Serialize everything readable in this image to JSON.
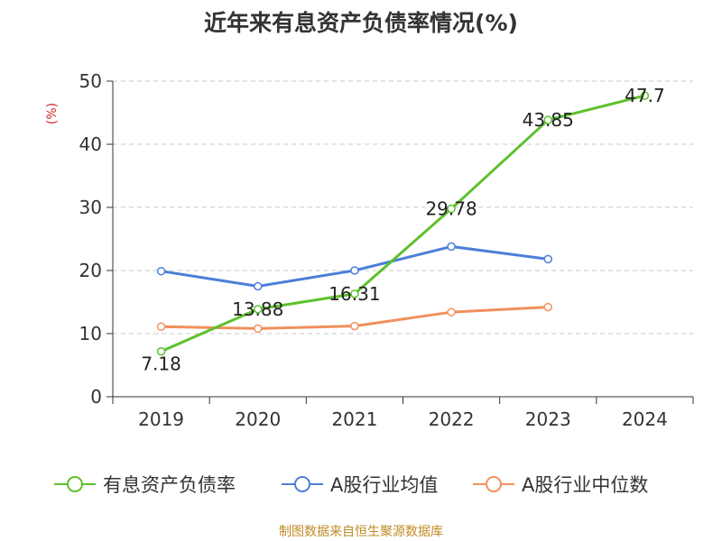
{
  "chart_data": {
    "type": "line",
    "title": "近年来有息资产负债率情况(%)",
    "ylabel": "(%)",
    "xlabel": "",
    "categories": [
      "2019",
      "2020",
      "2021",
      "2022",
      "2023",
      "2024"
    ],
    "ylim": [
      0,
      50
    ],
    "yticks": [
      0,
      10,
      20,
      30,
      40,
      50
    ],
    "grid": true,
    "legend_position": "bottom",
    "series": [
      {
        "name": "有息资产负债率",
        "color": "#5dc12d",
        "values": [
          7.18,
          13.88,
          16.31,
          29.78,
          43.85,
          47.7
        ],
        "data_labels": [
          "7.18",
          "13.88",
          "16.31",
          "29.78",
          "43.85",
          "47.7"
        ]
      },
      {
        "name": "A股行业均值",
        "color": "#4d7fd9",
        "values": [
          19.9,
          17.5,
          20.0,
          23.8,
          21.8,
          null
        ]
      },
      {
        "name": "A股行业中位数",
        "color": "#f0905c",
        "values": [
          11.1,
          10.8,
          11.2,
          13.4,
          14.2,
          null
        ]
      }
    ]
  },
  "source_text": "制图数据来自恒生聚源数据库"
}
